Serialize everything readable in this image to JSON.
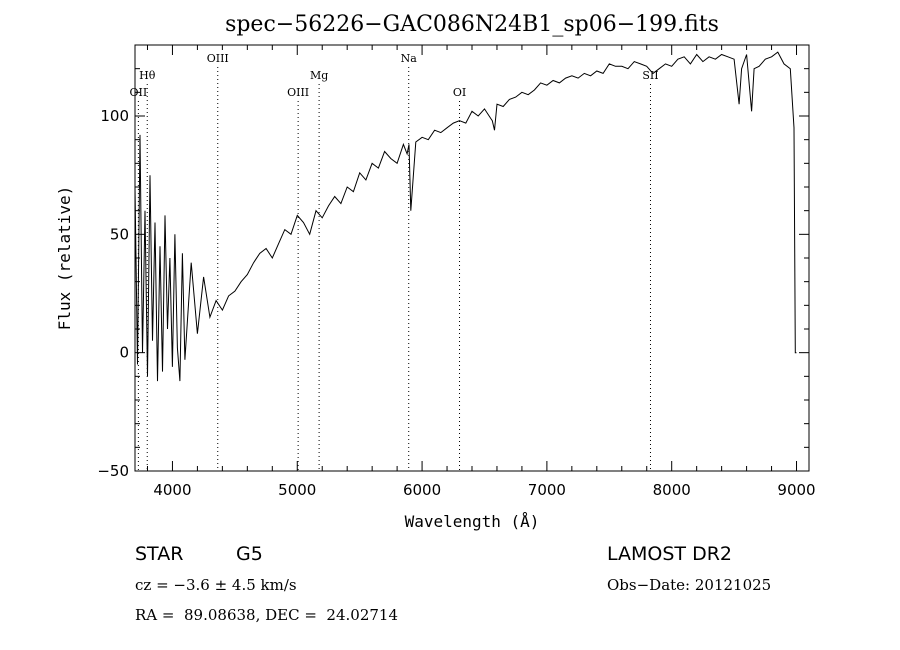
{
  "chart_data": {
    "type": "line",
    "title": "spec−56226−GAC086N24B1_sp06−199.fits",
    "xlabel": "Wavelength (Å)",
    "ylabel": "Flux (relative)",
    "xlim": [
      3700,
      9100
    ],
    "ylim": [
      -50,
      130
    ],
    "grid": false,
    "x_ticks": [
      {
        "value": 4000,
        "label": "4000"
      },
      {
        "value": 5000,
        "label": "5000"
      },
      {
        "value": 6000,
        "label": "6000"
      },
      {
        "value": 7000,
        "label": "7000"
      },
      {
        "value": 8000,
        "label": "8000"
      },
      {
        "value": 9000,
        "label": "9000"
      }
    ],
    "y_ticks": [
      {
        "value": -50,
        "label": "−50"
      },
      {
        "value": 0,
        "label": "0"
      },
      {
        "value": 50,
        "label": "50"
      },
      {
        "value": 100,
        "label": "100"
      }
    ],
    "line_markers": [
      {
        "label": "OII",
        "wavelength": 3727,
        "row": 3
      },
      {
        "label": "Hθ",
        "wavelength": 3798,
        "row": 2
      },
      {
        "label": "OIII",
        "wavelength": 4363,
        "row": 1
      },
      {
        "label": "OIII",
        "wavelength": 5007,
        "row": 3
      },
      {
        "label": "Mg",
        "wavelength": 5175,
        "row": 2
      },
      {
        "label": "Na",
        "wavelength": 5893,
        "row": 1
      },
      {
        "label": "OI",
        "wavelength": 6300,
        "row": 3
      },
      {
        "label": "SII",
        "wavelength": 7830,
        "row": 2
      }
    ],
    "series": [
      {
        "x": [
          3700,
          3720,
          3740,
          3760,
          3780,
          3800,
          3820,
          3840,
          3860,
          3880,
          3900,
          3920,
          3940,
          3960,
          3980,
          4000,
          4020,
          4040,
          4060,
          4080,
          4100,
          4150,
          4200,
          4250,
          4300,
          4350,
          4400,
          4450,
          4500,
          4550,
          4600,
          4650,
          4700,
          4750,
          4800,
          4850,
          4900,
          4950,
          5000,
          5050,
          5100,
          5150,
          5200,
          5250,
          5300,
          5350,
          5400,
          5450,
          5500,
          5550,
          5600,
          5650,
          5700,
          5750,
          5800,
          5850,
          5880,
          5895,
          5910,
          5950,
          6000,
          6050,
          6100,
          6150,
          6200,
          6250,
          6300,
          6350,
          6400,
          6450,
          6500,
          6550,
          6563,
          6580,
          6600,
          6650,
          6700,
          6750,
          6800,
          6850,
          6900,
          6950,
          7000,
          7050,
          7100,
          7150,
          7200,
          7250,
          7300,
          7350,
          7400,
          7450,
          7500,
          7550,
          7600,
          7650,
          7700,
          7750,
          7800,
          7850,
          7900,
          7950,
          8000,
          8050,
          8100,
          8150,
          8200,
          8250,
          8300,
          8350,
          8400,
          8450,
          8500,
          8540,
          8560,
          8600,
          8640,
          8660,
          8700,
          8750,
          8800,
          8850,
          8900,
          8950,
          8980,
          8990,
          9000
        ],
        "y": [
          70,
          -5,
          92,
          0,
          60,
          -10,
          75,
          5,
          55,
          -12,
          45,
          -8,
          58,
          10,
          40,
          -6,
          50,
          2,
          -12,
          42,
          -3,
          38,
          8,
          32,
          15,
          22,
          18,
          24,
          26,
          30,
          33,
          38,
          42,
          44,
          40,
          46,
          52,
          50,
          58,
          55,
          50,
          60,
          57,
          62,
          66,
          63,
          70,
          68,
          76,
          73,
          80,
          78,
          85,
          82,
          80,
          88,
          84,
          88,
          60,
          89,
          91,
          90,
          94,
          93,
          95,
          97,
          98,
          97,
          102,
          100,
          103,
          99,
          98,
          94,
          105,
          104,
          107,
          108,
          110,
          109,
          111,
          114,
          113,
          115,
          114,
          116,
          117,
          116,
          118,
          117,
          119,
          118,
          122,
          121,
          121,
          120,
          123,
          122,
          121,
          118,
          120,
          122,
          121,
          124,
          125,
          122,
          126,
          123,
          125,
          124,
          126,
          125,
          124,
          105,
          120,
          126,
          102,
          120,
          121,
          124,
          125,
          127,
          122,
          120,
          95,
          0,
          0
        ]
      }
    ]
  },
  "info": {
    "object_class": "STAR",
    "subclass": "G5",
    "survey": "LAMOST DR2",
    "cz_text": "cz = −3.6 ± 4.5 km/s",
    "obs_date": "Obs−Date: 20121025",
    "coords": "RA =  89.08638, DEC =  24.02714"
  }
}
